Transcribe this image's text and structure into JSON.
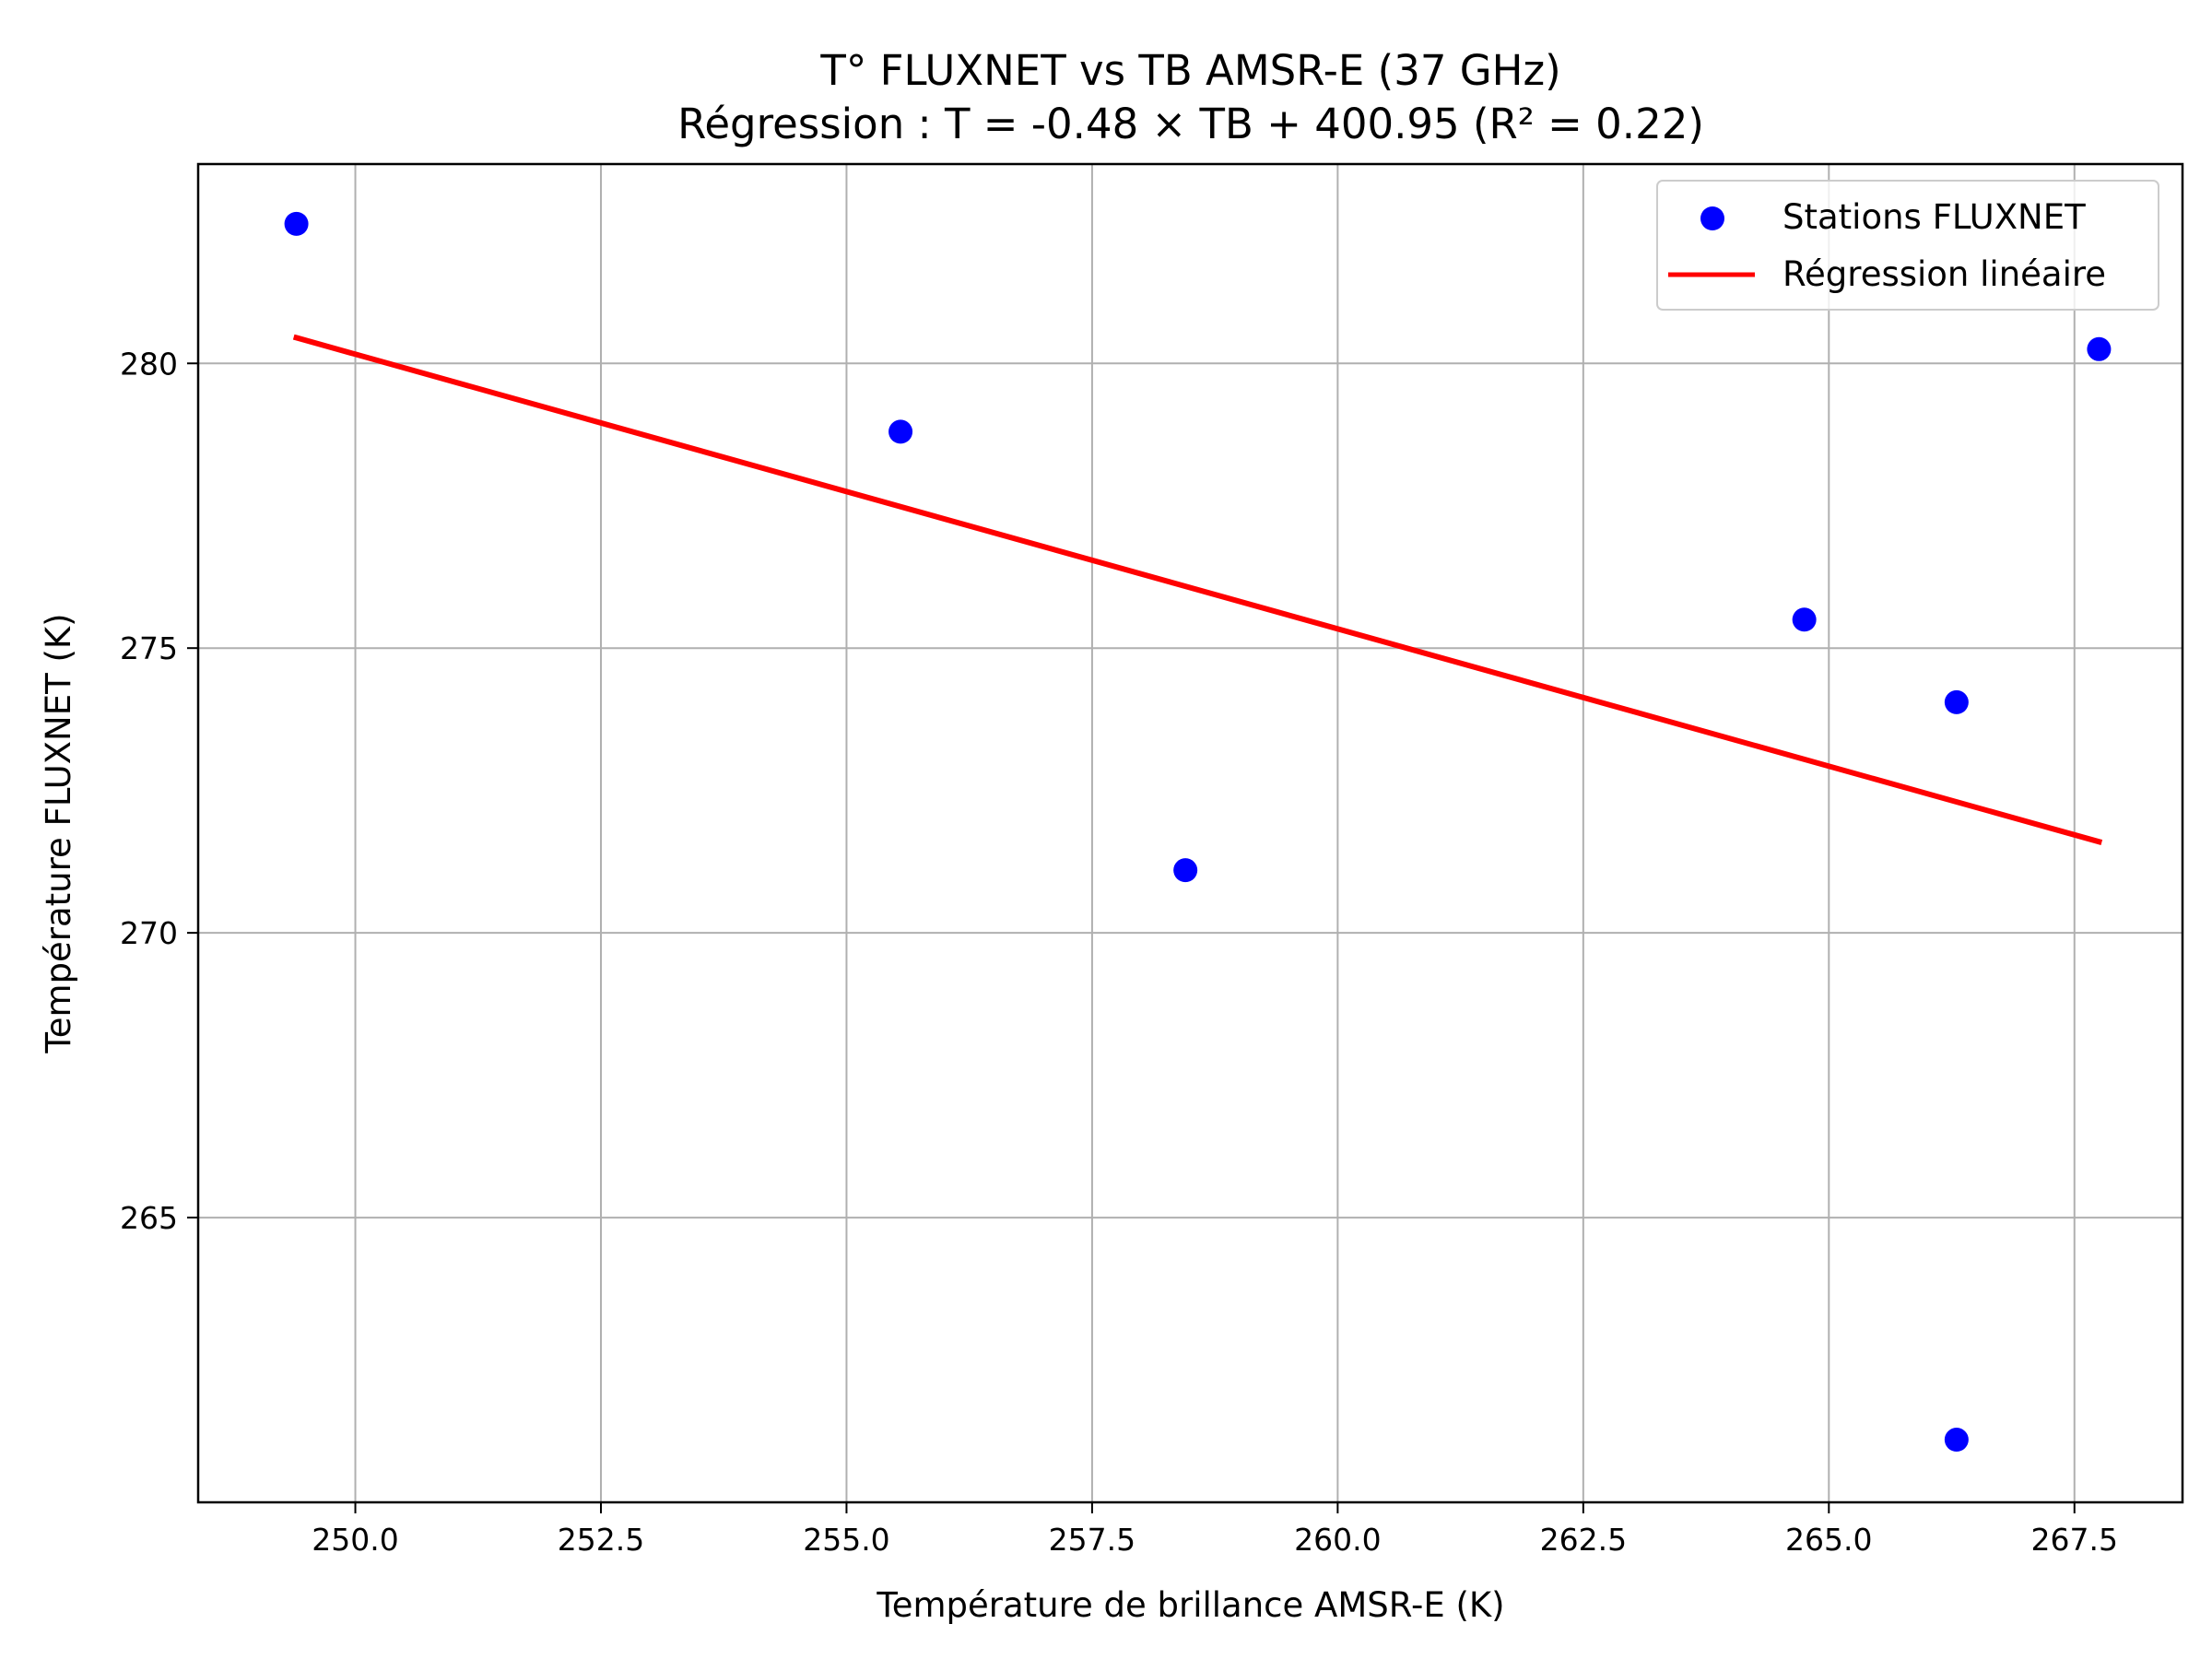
{
  "chart_data": {
    "type": "scatter",
    "title": "T° FLUXNET vs TB AMSR-E (37 GHz)",
    "subtitle": "Régression : T = -0.48 × TB + 400.95 (R² = 0.22)",
    "xlabel": "Température de brillance AMSR-E (K)",
    "ylabel": "Température FLUXNET (K)",
    "xlim": [
      248.4,
      268.6
    ],
    "ylim": [
      260.0,
      283.5
    ],
    "xticks": [
      250.0,
      252.5,
      255.0,
      257.5,
      260.0,
      262.5,
      265.0,
      267.5
    ],
    "xtick_labels": [
      "250.0",
      "252.5",
      "255.0",
      "257.5",
      "260.0",
      "262.5",
      "265.0",
      "267.5"
    ],
    "yticks": [
      265,
      270,
      275,
      280
    ],
    "ytick_labels": [
      "265",
      "270",
      "275",
      "280"
    ],
    "grid": true,
    "legend_position": "top-right",
    "series": [
      {
        "name": "Stations FLUXNET",
        "kind": "scatter",
        "color": "#0000ff",
        "x": [
          249.4,
          255.55,
          258.45,
          264.75,
          266.3,
          266.3,
          267.75
        ],
        "y": [
          282.45,
          278.8,
          271.1,
          275.5,
          274.05,
          261.1,
          280.25
        ]
      },
      {
        "name": "Régression linéaire",
        "kind": "line",
        "color": "#ff0000",
        "slope": -0.48,
        "intercept": 400.95,
        "x": [
          249.4,
          267.75
        ],
        "y": [
          280.45,
          271.6
        ]
      }
    ]
  }
}
